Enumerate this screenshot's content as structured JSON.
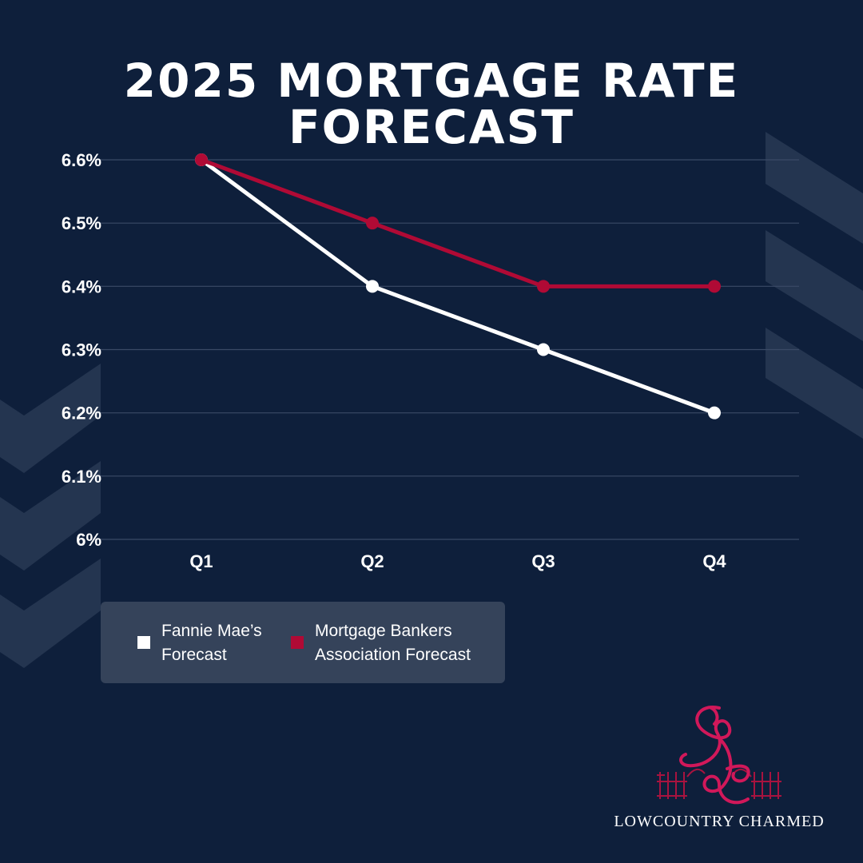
{
  "title": "2025 MORTGAGE RATE FORECAST",
  "colors": {
    "background": "#0e1f3b",
    "fannie_mae": "#ffffff",
    "mba": "#b00a35",
    "gridline": "#3a4a66",
    "legend_bg": "#35435a",
    "chevron": "#243550"
  },
  "chart_data": {
    "type": "line",
    "title": "2025 MORTGAGE RATE FORECAST",
    "categories": [
      "Q1",
      "Q2",
      "Q3",
      "Q4"
    ],
    "y_ticks": [
      6.0,
      6.1,
      6.2,
      6.3,
      6.4,
      6.5,
      6.6
    ],
    "y_tick_labels": [
      "6%",
      "6.1%",
      "6.2%",
      "6.3%",
      "6.4%",
      "6.5%",
      "6.6%"
    ],
    "ylim": [
      6.0,
      6.6
    ],
    "grid": true,
    "legend_position": "bottom-left",
    "series": [
      {
        "name": "Fannie Mae’s Forecast",
        "values": [
          6.6,
          6.4,
          6.3,
          6.2
        ],
        "color": "#ffffff"
      },
      {
        "name": "Mortgage Bankers Association Forecast",
        "values": [
          6.6,
          6.5,
          6.4,
          6.4
        ],
        "color": "#b00a35"
      }
    ]
  },
  "legend": {
    "items": [
      {
        "lines": [
          "Fannie Mae’s",
          "Forecast"
        ],
        "color": "#ffffff"
      },
      {
        "lines": [
          "Mortgage Bankers",
          "Association Forecast"
        ],
        "color": "#b00a35"
      }
    ]
  },
  "brand": {
    "name": "LOWCOUNTRY CHARMED",
    "logo_icon": "monogram-lc-gate-logo"
  }
}
